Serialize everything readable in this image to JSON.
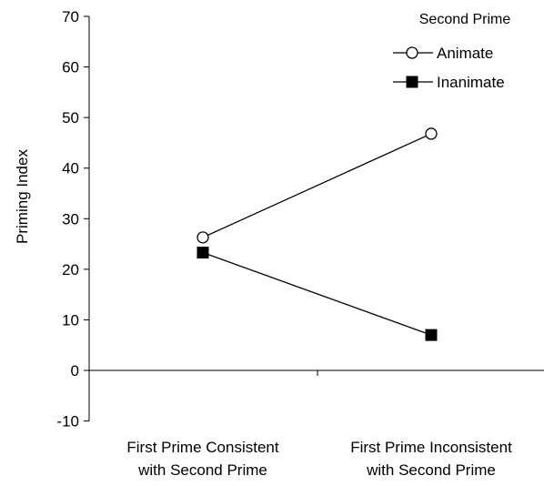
{
  "chart_data": {
    "type": "line",
    "ylabel": "Priming Index",
    "ylim": [
      -10,
      70
    ],
    "yticks": [
      -10,
      0,
      10,
      20,
      30,
      40,
      50,
      60,
      70
    ],
    "categories": [
      [
        "First Prime Consistent",
        "with Second Prime"
      ],
      [
        "First Prime Inconsistent",
        "with Second Prime"
      ]
    ],
    "legend": {
      "title": "Second Prime",
      "placement": "top-right"
    },
    "grid": false,
    "series": [
      {
        "name": "Animate",
        "marker": "open-circle",
        "values": [
          26.3,
          46.8
        ]
      },
      {
        "name": "Inanimate",
        "marker": "filled-square",
        "values": [
          23.3,
          7.0
        ]
      }
    ]
  }
}
